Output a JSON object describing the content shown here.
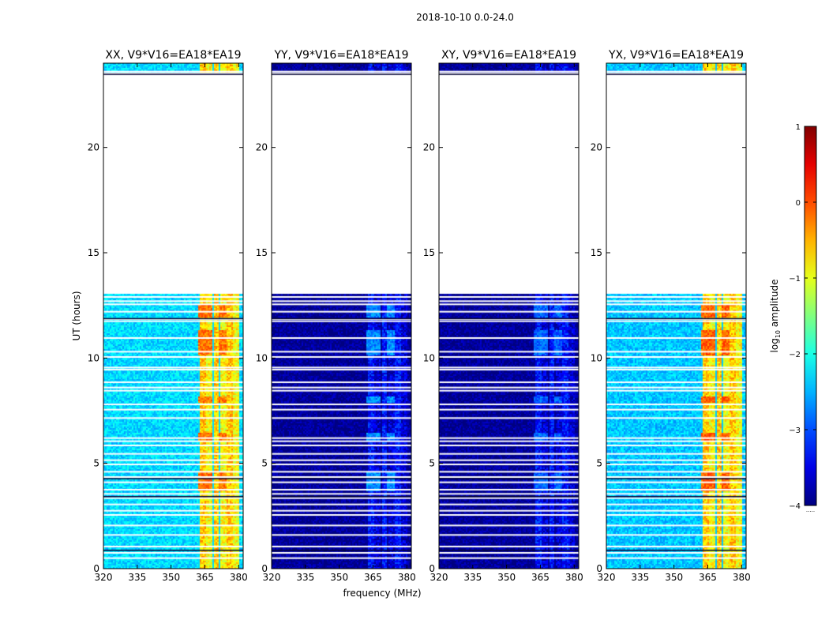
{
  "figure_title": "2018-10-10 0.0-24.0",
  "chart_data": {
    "type": "heatmap",
    "title": "2018-10-10 0.0-24.0",
    "xlabel": "frequency (MHz)",
    "ylabel": "UT (hours)",
    "xlim": [
      320,
      382
    ],
    "ylim": [
      0,
      24
    ],
    "xticks": [
      320,
      335,
      350,
      365,
      380
    ],
    "yticks": [
      0,
      5,
      10,
      15,
      20
    ],
    "colorbar": {
      "label": "log10 amplitude",
      "label_base": "log",
      "label_sub": "10",
      "label_rest": " amplitude",
      "range": [
        -4,
        1
      ],
      "ticks": [
        "1",
        "0",
        "−1",
        "−2",
        "−3",
        "−4"
      ],
      "colormap": "jet",
      "extra_label": "....."
    },
    "data_coverage_hours": [
      [
        0,
        13.05
      ],
      [
        23.55,
        24.0
      ]
    ],
    "blank_rows_hours": [
      0.5,
      0.75,
      1.05,
      1.6,
      2.05,
      2.55,
      2.75,
      3.05,
      3.35,
      3.55,
      3.75,
      4.1,
      4.35,
      4.6,
      4.95,
      5.15,
      5.45,
      5.85,
      6.05,
      6.2,
      7.15,
      7.55,
      7.8,
      8.45,
      8.6,
      8.85,
      9.45,
      9.55,
      10.05,
      10.3,
      10.95,
      11.75,
      11.85,
      12.2,
      12.55,
      12.7,
      12.9,
      23.6
    ],
    "rfi_band_mhz": [
      362,
      380
    ],
    "panels": [
      {
        "title": "XX, V9*V16=EA18*EA19",
        "polarization": "XX",
        "background_level": -2.3,
        "band_level": -0.9,
        "peak_level": 0.1
      },
      {
        "title": "YY, V9*V16=EA18*EA19",
        "polarization": "YY",
        "background_level": -3.9,
        "band_level": -3.6,
        "peak_level": -2.4
      },
      {
        "title": "XY, V9*V16=EA18*EA19",
        "polarization": "XY",
        "background_level": -3.9,
        "band_level": -3.6,
        "peak_level": -2.6
      },
      {
        "title": "YX, V9*V16=EA18*EA19",
        "polarization": "YX",
        "background_level": -2.4,
        "band_level": -0.9,
        "peak_level": 0.2
      }
    ]
  }
}
